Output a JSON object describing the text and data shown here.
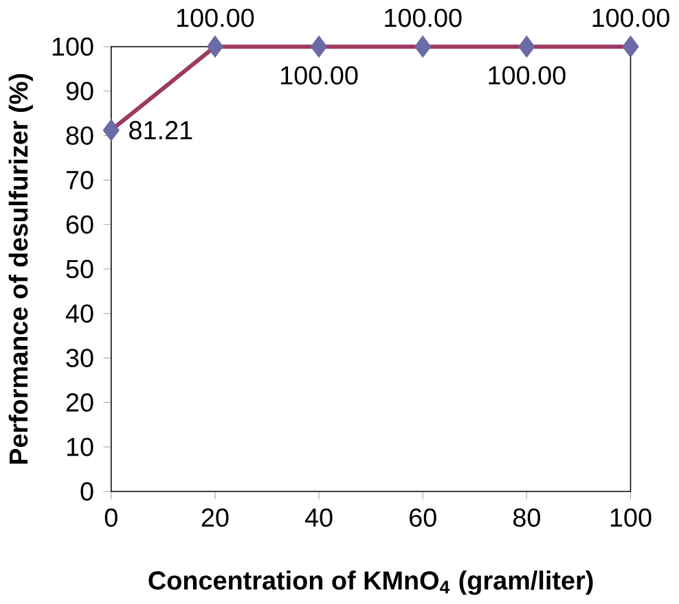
{
  "chart_data": {
    "type": "line",
    "xlabel": "Concentration of KMnO$_{4}$ (gram/liter)",
    "ylabel": "Performance of desulfurizer (%)",
    "x": [
      0,
      20,
      40,
      60,
      80,
      100
    ],
    "series": [
      {
        "color": "#9e3a62",
        "colors": [
          "#6b6ba8",
          "#6b6ba8",
          "#6b6ba8",
          "#6b6ba8",
          "#6b6ba8",
          "#6b6ba8"
        ],
        "values": [
          81.21,
          100,
          100,
          100,
          100,
          100
        ],
        "value_labels": [
          "81.21",
          "100.00",
          "100.00",
          "100.00",
          "100.00",
          "100.00"
        ]
      }
    ],
    "xlim": [
      0,
      100
    ],
    "ylim": [
      0,
      100
    ],
    "xticks": [
      0,
      20,
      40,
      60,
      80,
      100
    ],
    "yticks": [
      0,
      10,
      20,
      30,
      40,
      50,
      60,
      70,
      80,
      90,
      100
    ],
    "marker": "diamond",
    "line_style": "solid",
    "grid": false
  }
}
